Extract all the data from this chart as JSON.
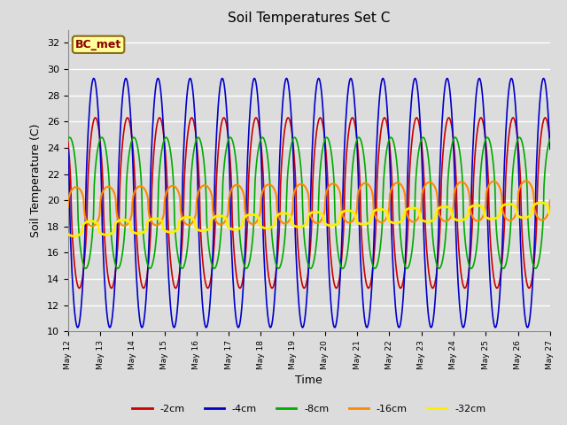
{
  "title": "Soil Temperatures Set C",
  "xlabel": "Time",
  "ylabel": "Soil Temperature (C)",
  "ylim": [
    10,
    33
  ],
  "yticks": [
    10,
    12,
    14,
    16,
    18,
    20,
    22,
    24,
    26,
    28,
    30,
    32
  ],
  "background_color": "#dcdcdc",
  "plot_background": "#dcdcdc",
  "grid_color": "white",
  "annotation_text": "BC_met",
  "annotation_bg": "#ffff99",
  "annotation_border": "#8B6914",
  "annotation_text_color": "#8B0000",
  "series": [
    {
      "label": "-2cm",
      "color": "#cc0000",
      "lw": 1.2
    },
    {
      "label": "-4cm",
      "color": "#0000cc",
      "lw": 1.2
    },
    {
      "label": "-8cm",
      "color": "#00aa00",
      "lw": 1.2
    },
    {
      "label": "-16cm",
      "color": "#ff8800",
      "lw": 1.5
    },
    {
      "label": "-32cm",
      "color": "#ffee00",
      "lw": 2.0
    }
  ],
  "start_day": 12,
  "end_day": 27,
  "points_per_day": 48
}
